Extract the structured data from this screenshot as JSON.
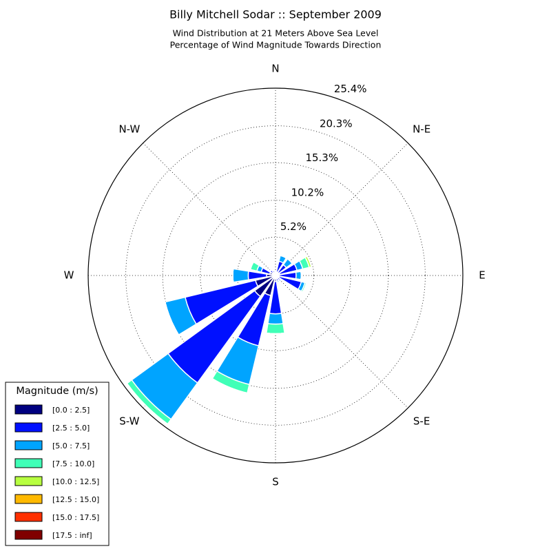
{
  "chart_data": {
    "type": "windrose",
    "title": "Billy Mitchell Sodar :: September 2009",
    "subtitle": [
      "Wind Distribution at 21 Meters Above Sea Level",
      "Percentage of Wind Magnitude Towards Direction"
    ],
    "categories": [
      "N",
      null,
      "N-E",
      null,
      "E",
      null,
      "S-E",
      null,
      "S",
      null,
      "S-W",
      null,
      "W",
      null,
      "N-W",
      null
    ],
    "ylim": [
      0,
      25.4
    ],
    "yticks": [
      {
        "value": 5.2,
        "label": "5.2%"
      },
      {
        "value": 10.2,
        "label": "10.2%"
      },
      {
        "value": 15.3,
        "label": "15.3%"
      },
      {
        "value": 20.3,
        "label": "20.3%"
      },
      {
        "value": 25.4,
        "label": "25.4%"
      }
    ],
    "grid": true,
    "legend_title": "Magnitude (m/s)",
    "legend_position": "lower left",
    "series": [
      {
        "name": "[0.0 : 2.5]",
        "color": "#000080",
        "values": [
          0.3,
          0.5,
          0.5,
          0.6,
          0.5,
          0.5,
          0.4,
          0.4,
          0.8,
          2.8,
          3.5,
          2.8,
          1.2,
          0.8,
          0.5,
          0.4
        ]
      },
      {
        "name": "[2.5 : 5.0]",
        "color": "#0010ff",
        "values": [
          0.2,
          1.5,
          1.3,
          2.4,
          2.3,
          3.1,
          0.4,
          0.4,
          4.4,
          7.0,
          14.5,
          9.8,
          2.5,
          1.2,
          0.4,
          0.3
        ]
      },
      {
        "name": "[5.0 : 7.5]",
        "color": "#00a4ff",
        "values": [
          0,
          0.8,
          1.0,
          0.8,
          0.7,
          0.5,
          0.2,
          0.2,
          1.4,
          5.4,
          6.1,
          2.8,
          2.1,
          0.6,
          0.1,
          0.1
        ]
      },
      {
        "name": "[7.5 : 10.0]",
        "color": "#40ffb7",
        "values": [
          0,
          0,
          0,
          0.9,
          0,
          0.2,
          0,
          0,
          1.3,
          1.2,
          0.8,
          0,
          0,
          0.9,
          0,
          0
        ]
      },
      {
        "name": "[10.0 : 12.5]",
        "color": "#b7ff40",
        "values": [
          0,
          0,
          0,
          0.3,
          0,
          0,
          0,
          0,
          0,
          0,
          0,
          0,
          0,
          0,
          0,
          0
        ]
      },
      {
        "name": "[12.5 : 15.0]",
        "color": "#ffb900",
        "values": [
          0,
          0,
          0,
          0,
          0,
          0,
          0,
          0,
          0,
          0,
          0,
          0,
          0,
          0,
          0,
          0
        ]
      },
      {
        "name": "[15.0 : 17.5]",
        "color": "#ff3000",
        "values": [
          0,
          0,
          0,
          0,
          0,
          0,
          0,
          0,
          0,
          0,
          0,
          0,
          0,
          0,
          0,
          0
        ]
      },
      {
        "name": "[17.5 : inf]",
        "color": "#800000",
        "values": [
          0,
          0,
          0,
          0,
          0,
          0,
          0,
          0,
          0,
          0,
          0,
          0,
          0,
          0,
          0,
          0
        ]
      }
    ]
  }
}
